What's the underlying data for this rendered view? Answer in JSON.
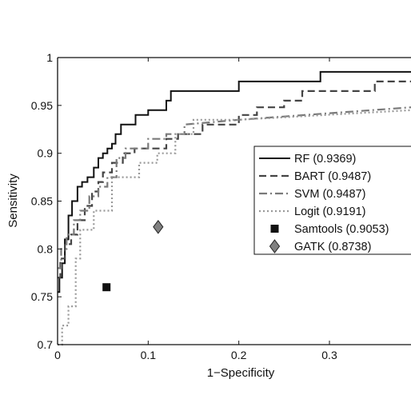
{
  "chart_data": {
    "type": "line",
    "title": "",
    "xlabel": "1−Specificity",
    "ylabel": "Sensitivity",
    "xlim": [
      0,
      0.39
    ],
    "ylim": [
      0.7,
      1.0
    ],
    "xticks": [
      0,
      0.1,
      0.2,
      0.3
    ],
    "xtick_labels": [
      "0",
      "0.1",
      "0.2",
      "0.3"
    ],
    "yticks": [
      0.7,
      0.75,
      0.8,
      0.85,
      0.9,
      0.95,
      1.0
    ],
    "ytick_labels": [
      "0.7",
      "0.75",
      "0.8",
      "0.85",
      "0.9",
      "0.95",
      "1"
    ],
    "grid": false,
    "legend_position": "right",
    "series": [
      {
        "name": "RF (0.9369)",
        "style": "solid",
        "color": "#111111",
        "x": [
          0,
          0.002,
          0.002,
          0.005,
          0.005,
          0.008,
          0.008,
          0.012,
          0.012,
          0.016,
          0.016,
          0.022,
          0.022,
          0.027,
          0.027,
          0.033,
          0.033,
          0.04,
          0.04,
          0.045,
          0.045,
          0.05,
          0.05,
          0.055,
          0.055,
          0.06,
          0.06,
          0.064,
          0.064,
          0.07,
          0.07,
          0.086,
          0.086,
          0.1,
          0.1,
          0.12,
          0.12,
          0.125,
          0.125,
          0.133,
          0.133,
          0.2,
          0.2,
          0.222,
          0.222,
          0.29,
          0.29,
          0.39
        ],
        "y": [
          0.755,
          0.755,
          0.77,
          0.77,
          0.785,
          0.785,
          0.81,
          0.81,
          0.835,
          0.835,
          0.85,
          0.85,
          0.865,
          0.865,
          0.87,
          0.87,
          0.875,
          0.875,
          0.885,
          0.885,
          0.895,
          0.895,
          0.9,
          0.9,
          0.905,
          0.905,
          0.91,
          0.91,
          0.92,
          0.92,
          0.93,
          0.93,
          0.94,
          0.94,
          0.945,
          0.945,
          0.955,
          0.955,
          0.965,
          0.965,
          0.965,
          0.965,
          0.975,
          0.975,
          0.975,
          0.975,
          0.985,
          0.985
        ]
      },
      {
        "name": "BART (0.9487)",
        "style": "dashed",
        "color": "#444444",
        "x": [
          0,
          0.003,
          0.003,
          0.008,
          0.008,
          0.015,
          0.015,
          0.022,
          0.022,
          0.03,
          0.03,
          0.038,
          0.038,
          0.045,
          0.045,
          0.05,
          0.05,
          0.06,
          0.06,
          0.072,
          0.072,
          0.085,
          0.085,
          0.12,
          0.12,
          0.133,
          0.133,
          0.16,
          0.16,
          0.2,
          0.2,
          0.22,
          0.22,
          0.25,
          0.25,
          0.27,
          0.27,
          0.35,
          0.35,
          0.39
        ],
        "y": [
          0.77,
          0.77,
          0.79,
          0.79,
          0.805,
          0.805,
          0.815,
          0.815,
          0.83,
          0.83,
          0.845,
          0.845,
          0.86,
          0.86,
          0.87,
          0.87,
          0.88,
          0.88,
          0.89,
          0.89,
          0.9,
          0.9,
          0.905,
          0.905,
          0.915,
          0.915,
          0.92,
          0.92,
          0.93,
          0.93,
          0.94,
          0.94,
          0.948,
          0.948,
          0.955,
          0.955,
          0.965,
          0.965,
          0.975,
          0.975
        ]
      },
      {
        "name": "SVM (0.9487)",
        "style": "dashdot",
        "color": "#7a7a7a",
        "x": [
          0,
          0.004,
          0.004,
          0.01,
          0.01,
          0.018,
          0.018,
          0.025,
          0.025,
          0.035,
          0.035,
          0.045,
          0.045,
          0.055,
          0.055,
          0.065,
          0.065,
          0.075,
          0.075,
          0.1,
          0.1,
          0.12,
          0.12,
          0.14,
          0.14,
          0.2,
          0.39
        ],
        "y": [
          0.78,
          0.78,
          0.8,
          0.8,
          0.815,
          0.815,
          0.83,
          0.83,
          0.84,
          0.84,
          0.855,
          0.855,
          0.865,
          0.865,
          0.875,
          0.875,
          0.895,
          0.895,
          0.905,
          0.905,
          0.915,
          0.915,
          0.92,
          0.92,
          0.93,
          0.935,
          0.948
        ]
      },
      {
        "name": "Logit (0.9191)",
        "style": "dotted",
        "color": "#999999",
        "x": [
          0,
          0.005,
          0.005,
          0.012,
          0.012,
          0.02,
          0.02,
          0.025,
          0.025,
          0.04,
          0.04,
          0.06,
          0.06,
          0.09,
          0.09,
          0.11,
          0.11,
          0.13,
          0.13,
          0.15,
          0.15,
          0.2,
          0.39
        ],
        "y": [
          0.7,
          0.7,
          0.72,
          0.72,
          0.74,
          0.74,
          0.79,
          0.79,
          0.82,
          0.82,
          0.84,
          0.84,
          0.875,
          0.875,
          0.89,
          0.89,
          0.9,
          0.9,
          0.92,
          0.92,
          0.935,
          0.935,
          0.945
        ]
      }
    ],
    "points": [
      {
        "name": "Samtools (0.9053)",
        "marker": "square",
        "color": "#111111",
        "x": 0.054,
        "y": 0.76
      },
      {
        "name": "GATK (0.8738)",
        "marker": "diamond",
        "color": "#808080",
        "x": 0.111,
        "y": 0.823
      }
    ]
  }
}
